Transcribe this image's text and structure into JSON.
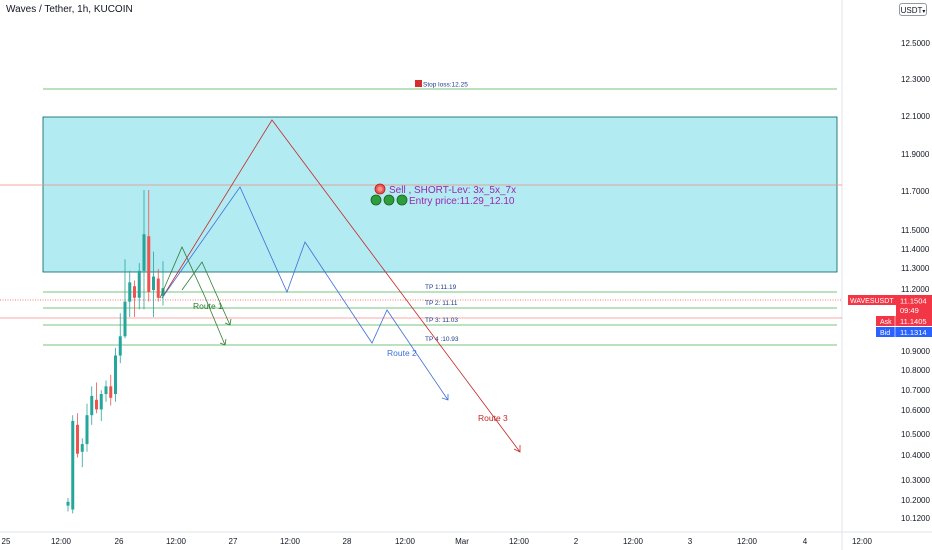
{
  "header": {
    "title": "Waves / Tether, 1h, KUCOIN",
    "currency": "USDT"
  },
  "price_axis": [
    "12.5000",
    "12.3000",
    "12.1000",
    "11.9000",
    "11.7000",
    "11.5000",
    "11.4000",
    "11.3000",
    "11.2000",
    "10.9000",
    "10.8000",
    "10.7000",
    "10.6000",
    "10.5000",
    "10.4000",
    "10.3000",
    "10.2000",
    "10.1200"
  ],
  "time_axis": [
    "25",
    "12:00",
    "26",
    "12:00",
    "27",
    "12:00",
    "28",
    "12:00",
    "Mar",
    "12:00",
    "2",
    "12:00",
    "3",
    "12:00",
    "4",
    "12:00"
  ],
  "price_tags": {
    "symbol": "WAVESUSDT",
    "last": "11.1504",
    "countdown": "09:49",
    "ask_label": "Ask",
    "ask": "11.1405",
    "bid_label": "Bid",
    "bid": "11.1314"
  },
  "annotations": {
    "stop_loss": "Stop loss:12.25",
    "tp1": "TP 1:11.19",
    "tp2": "TP 2: 11.11",
    "tp3": "TP 3: 11.03",
    "tp4": "TP 4 :10.93",
    "signal": "Sell , SHORT-Lev:  3x_5x_7x",
    "entry": "Entry price:11.29_12.10",
    "route1": "Route 1",
    "route2": "Route 2",
    "route3": "Route 3"
  },
  "colors": {
    "up": "#26a69a",
    "down": "#ef5350",
    "zone_fill": "#b2ebf2",
    "level_line": "#4caf50",
    "route1": "#2e7d32",
    "route2": "#3f6fd8",
    "route3": "#c62828",
    "signal_text": "#9c27b0",
    "tag_red": "#f23645",
    "tag_blue": "#2962ff"
  },
  "chart_data": {
    "type": "candlestick",
    "symbol": "WAVESUSDT",
    "interval": "1h",
    "exchange": "KUCOIN",
    "ylim": [
      10.08,
      12.6
    ],
    "candles": [
      {
        "o": 10.08,
        "h": 10.12,
        "l": 10.05,
        "c": 10.1
      },
      {
        "o": 10.06,
        "h": 10.55,
        "l": 10.04,
        "c": 10.52
      },
      {
        "o": 10.5,
        "h": 10.56,
        "l": 10.33,
        "c": 10.35
      },
      {
        "o": 10.36,
        "h": 10.43,
        "l": 10.28,
        "c": 10.4
      },
      {
        "o": 10.4,
        "h": 10.61,
        "l": 10.36,
        "c": 10.55
      },
      {
        "o": 10.55,
        "h": 10.7,
        "l": 10.5,
        "c": 10.65
      },
      {
        "o": 10.63,
        "h": 10.72,
        "l": 10.56,
        "c": 10.58
      },
      {
        "o": 10.58,
        "h": 10.68,
        "l": 10.52,
        "c": 10.66
      },
      {
        "o": 10.66,
        "h": 10.73,
        "l": 10.62,
        "c": 10.7
      },
      {
        "o": 10.7,
        "h": 10.76,
        "l": 10.6,
        "c": 10.64
      },
      {
        "o": 10.66,
        "h": 10.9,
        "l": 10.62,
        "c": 10.86
      },
      {
        "o": 10.86,
        "h": 11.08,
        "l": 10.82,
        "c": 10.96
      },
      {
        "o": 10.96,
        "h": 11.36,
        "l": 10.95,
        "c": 11.14
      },
      {
        "o": 11.14,
        "h": 11.3,
        "l": 11.06,
        "c": 11.24
      },
      {
        "o": 11.22,
        "h": 11.25,
        "l": 11.06,
        "c": 11.16
      },
      {
        "o": 11.16,
        "h": 11.34,
        "l": 11.1,
        "c": 11.3
      },
      {
        "o": 11.3,
        "h": 11.72,
        "l": 11.1,
        "c": 11.49
      },
      {
        "o": 11.48,
        "h": 11.72,
        "l": 11.14,
        "c": 11.19
      },
      {
        "o": 11.2,
        "h": 11.4,
        "l": 11.06,
        "c": 11.27
      },
      {
        "o": 11.26,
        "h": 11.31,
        "l": 11.14,
        "c": 11.16
      },
      {
        "o": 11.17,
        "h": 11.35,
        "l": 11.12,
        "c": 11.21
      }
    ],
    "zone": {
      "from": 11.29,
      "to": 12.1
    },
    "levels": {
      "stop_loss": 12.25,
      "tp1": 11.19,
      "tp2": 11.11,
      "tp3": 11.03,
      "tp4": 10.93
    },
    "last_price": 11.1504,
    "ask": 11.1405,
    "bid": 11.1314
  }
}
